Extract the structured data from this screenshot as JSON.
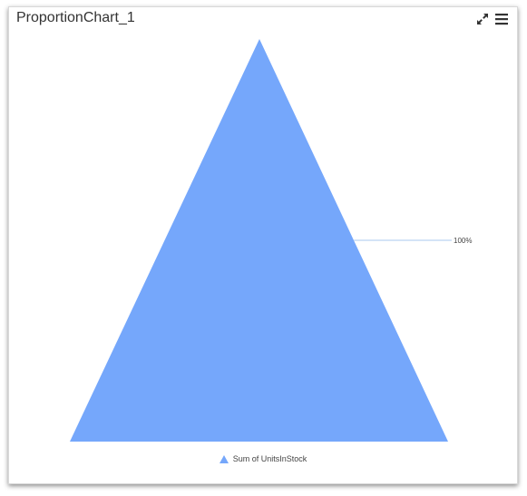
{
  "widget": {
    "title": "ProportionChart_1",
    "icons": [
      "expand-icon",
      "menu-icon"
    ]
  },
  "colors": {
    "series": "#75a7fb",
    "leader_line": "#a9c8ef",
    "label_text": "#444444"
  },
  "chart_data": {
    "type": "pyramid",
    "categories": [
      "Sum of UnitsInStock"
    ],
    "series": [
      {
        "name": "Sum of UnitsInStock",
        "percent": 100
      }
    ],
    "data_labels": [
      "100%"
    ],
    "legend": {
      "entries": [
        "Sum of UnitsInStock"
      ],
      "placement": "bottom"
    }
  }
}
